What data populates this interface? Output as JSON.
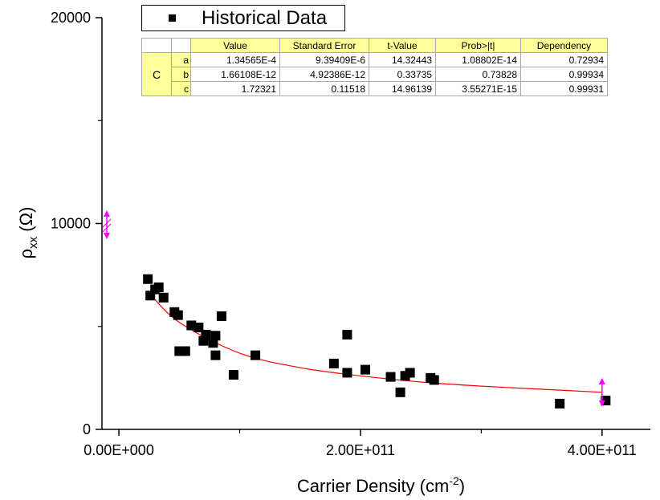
{
  "chart_data": {
    "type": "scatter",
    "xlabel": "Carrier Density (cm",
    "xlabel_superscript": "-2",
    "xlabel_suffix": ")",
    "ylabel": "ρ",
    "ylabel_subscript": "xx",
    "ylabel_suffix": " (Ω)",
    "xlim": [
      -14000000000.0,
      440000000000.0
    ],
    "ylim": [
      0,
      20000
    ],
    "x_ticks": [
      0,
      200000000000.0,
      400000000000.0
    ],
    "x_tick_labels": [
      "0.00E+000",
      "2.00E+011",
      "4.00E+011"
    ],
    "y_ticks": [
      0,
      10000,
      20000
    ],
    "y_tick_labels": [
      "0",
      "10000",
      "20000"
    ],
    "legend": {
      "position": "top-left",
      "entries": [
        "Historical Data"
      ]
    },
    "series": [
      {
        "name": "Historical Data",
        "marker": "square",
        "color": "#000000",
        "points": [
          [
            24000000000.0,
            7300
          ],
          [
            26000000000.0,
            6500
          ],
          [
            30000000000.0,
            6800
          ],
          [
            33000000000.0,
            6900
          ],
          [
            37000000000.0,
            6400
          ],
          [
            46000000000.0,
            5700
          ],
          [
            49000000000.0,
            5550
          ],
          [
            50000000000.0,
            3800
          ],
          [
            55000000000.0,
            3800
          ],
          [
            60000000000.0,
            5050
          ],
          [
            66000000000.0,
            4950
          ],
          [
            70000000000.0,
            4300
          ],
          [
            72000000000.0,
            4600
          ],
          [
            78000000000.0,
            4200
          ],
          [
            80000000000.0,
            4550
          ],
          [
            80000000000.0,
            3600
          ],
          [
            85000000000.0,
            5500
          ],
          [
            95000000000.0,
            2650
          ],
          [
            113000000000.0,
            3600
          ],
          [
            178000000000.0,
            3200
          ],
          [
            189000000000.0,
            4600
          ],
          [
            189000000000.0,
            2750
          ],
          [
            204000000000.0,
            2900
          ],
          [
            225000000000.0,
            2550
          ],
          [
            233000000000.0,
            1800
          ],
          [
            237000000000.0,
            2600
          ],
          [
            241000000000.0,
            2750
          ],
          [
            258000000000.0,
            2500
          ],
          [
            261000000000.0,
            2400
          ],
          [
            365000000000.0,
            1250
          ],
          [
            403000000000.0,
            1400
          ]
        ]
      }
    ],
    "fit_curve": {
      "color": "#ff0000",
      "x_range": [
        24000000000.0,
        400000000000.0
      ],
      "points": [
        [
          24000000000.0,
          6700
        ],
        [
          50000000000.0,
          5200
        ],
        [
          100000000000.0,
          3700
        ],
        [
          150000000000.0,
          3000
        ],
        [
          200000000000.0,
          2600
        ],
        [
          250000000000.0,
          2300
        ],
        [
          300000000000.0,
          2100
        ],
        [
          350000000000.0,
          1950
        ],
        [
          400000000000.0,
          1800
        ]
      ]
    },
    "colors": {
      "markers": "#000000",
      "fit_line": "#ff0000",
      "handles": "#ff00ff",
      "table_header": "#ffff99"
    }
  },
  "legend": {
    "label": "Historical Data"
  },
  "fit_table": {
    "group_label": "C",
    "headers": [
      "Value",
      "Standard Error",
      "t-Value",
      "Prob>|t|",
      "Dependency"
    ],
    "rows": [
      {
        "param": "a",
        "cells": [
          "1.34565E-4",
          "9.39409E-6",
          "14.32443",
          "1.08802E-14",
          "0.72934"
        ]
      },
      {
        "param": "b",
        "cells": [
          "1.66108E-12",
          "4.92386E-12",
          "0.33735",
          "0.73828",
          "0.99934"
        ]
      },
      {
        "param": "c",
        "cells": [
          "1.72321",
          "0.11518",
          "14.96139",
          "3.55271E-15",
          "0.99931"
        ]
      }
    ]
  }
}
